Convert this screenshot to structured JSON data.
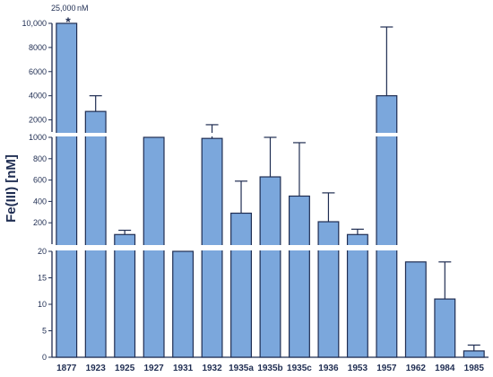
{
  "chart_data": {
    "type": "bar",
    "ylabel": "Fe(III) [nM]",
    "y_axis": "broken",
    "segments": [
      {
        "name": "top",
        "ylim": [
          1000,
          10000
        ],
        "ticks": [
          "2000",
          "4000",
          "6000",
          "8000",
          "10,000"
        ]
      },
      {
        "name": "middle",
        "ylim": [
          0,
          1000
        ],
        "ticks": [
          "200",
          "400",
          "600",
          "800",
          "1000"
        ]
      },
      {
        "name": "bottom",
        "ylim": [
          0,
          20
        ],
        "ticks": [
          "0",
          "5",
          "10",
          "15",
          "20"
        ]
      }
    ],
    "categories": [
      "1877",
      "1923",
      "1925",
      "1927",
      "1931",
      "1932",
      "1935a",
      "1935b",
      "1935c",
      "1936",
      "1953",
      "1957",
      "1962",
      "1984",
      "1985"
    ],
    "values": [
      25000,
      2700,
      90,
      1000,
      20,
      990,
      290,
      630,
      450,
      210,
      90,
      4000,
      18,
      11,
      1.2
    ],
    "error_upper": [
      null,
      4000,
      130,
      1000,
      null,
      1600,
      590,
      1000,
      950,
      480,
      140,
      9700,
      null,
      18,
      2.3
    ],
    "annotation": {
      "value_label": "25,000",
      "unit_label": "nM",
      "marker": "*"
    },
    "colors": {
      "bar": "#7ba7dc",
      "bar_edge": "#1f2d52",
      "axis": "#1f2d52"
    }
  }
}
